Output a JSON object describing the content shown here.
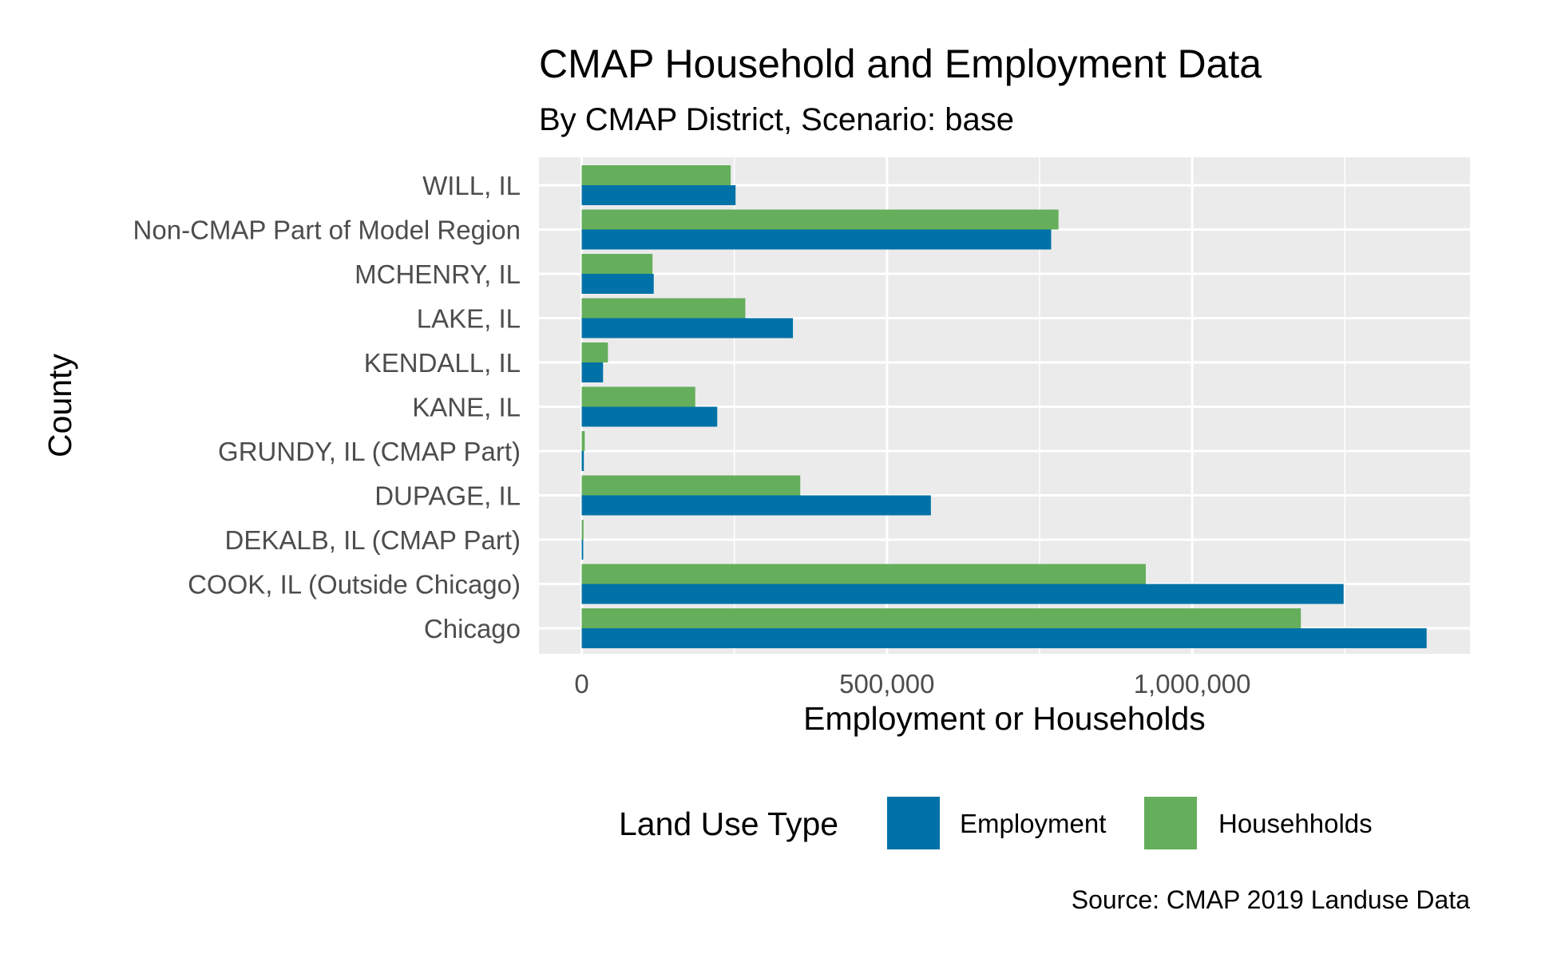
{
  "chart_data": {
    "type": "bar",
    "orientation": "horizontal",
    "title": "CMAP Household and Employment Data",
    "subtitle": "By CMAP District, Scenario: base",
    "xlabel": "Employment or Households",
    "ylabel": "County",
    "caption": "Source: CMAP 2019 Landuse Data",
    "categories": [
      "Chicago",
      "COOK, IL (Outside Chicago)",
      "DEKALB, IL (CMAP Part)",
      "DUPAGE, IL",
      "GRUNDY, IL (CMAP Part)",
      "KANE, IL",
      "KENDALL, IL",
      "LAKE, IL",
      "MCHENRY, IL",
      "Non-CMAP Part of Model Region",
      "WILL, IL"
    ],
    "series": [
      {
        "name": "Employment",
        "color": "#0072a7",
        "values": [
          1384000,
          1248000,
          2500,
          572000,
          3500,
          222000,
          35000,
          346000,
          118000,
          769000,
          252000
        ]
      },
      {
        "name": "Househholds",
        "color": "#65ae5c",
        "values": [
          1178000,
          924000,
          3000,
          358000,
          5000,
          186000,
          43000,
          268000,
          116000,
          781000,
          244000
        ]
      }
    ],
    "xlim": [
      -70000,
      1455000
    ],
    "xticks": [
      0,
      500000,
      1000000
    ],
    "xtick_labels": [
      "0",
      "500,000",
      "1,000,000"
    ],
    "grid": true,
    "legend": {
      "title": "Land Use Type",
      "position": "bottom",
      "items": [
        "Employment",
        "Househholds"
      ]
    }
  }
}
